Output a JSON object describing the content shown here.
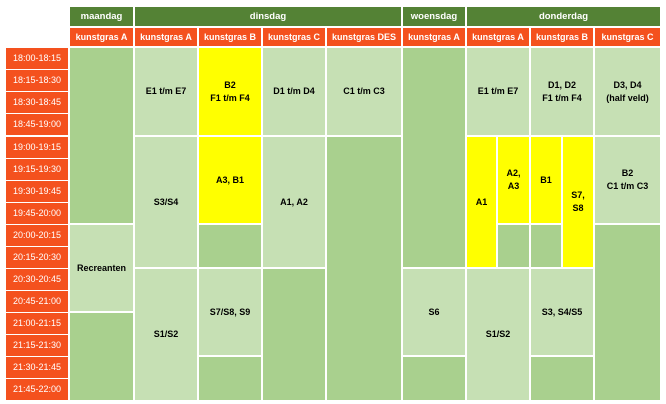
{
  "colors": {
    "day_header": "#548235",
    "field_header": "#f4511e",
    "time_slot": "#f4511e",
    "light_green": "#c6e0b4",
    "dark_green": "#a9d08e",
    "yellow": "#ffff00"
  },
  "days": {
    "maandag": "maandag",
    "dinsdag": "dinsdag",
    "woensdag": "woensdag",
    "donderdag": "donderdag"
  },
  "fields": {
    "ma_a": "kunstgras A",
    "di_a": "kunstgras A",
    "di_b": "kunstgras B",
    "di_c": "kunstgras C",
    "di_des": "kunstgras DES",
    "wo_a": "kunstgras A",
    "do_a": "kunstgras A",
    "do_b": "kunstgras B",
    "do_c": "kunstgras C"
  },
  "times": [
    "18:00-18:15",
    "18:15-18:30",
    "18:30-18:45",
    "18:45-19:00",
    "19:00-19:15",
    "19:15-19:30",
    "19:30-19:45",
    "19:45-20:00",
    "20:00-20:15",
    "20:15-20:30",
    "20:30-20:45",
    "20:45-21:00",
    "21:00-21:15",
    "21:15-21:30",
    "21:30-21:45",
    "21:45-22:00"
  ],
  "blocks": {
    "ma_recreanten": "Recreanten",
    "di_a_1": "E1 t/m E7",
    "di_a_2": "S3/S4",
    "di_a_3": "S1/S2",
    "di_b_1": "B2\nF1 t/m F4",
    "di_b_2": "A3, B1",
    "di_b_3": "S7/S8, S9",
    "di_c_1": "D1 t/m D4",
    "di_c_2": "A1, A2",
    "di_des_1": "C1 t/m C3",
    "wo_s6": "S6",
    "do_a_1": "E1 t/m E7",
    "do_a_a1": "A1",
    "do_a_a2a3": "A2,\nA3",
    "do_a_3": "S1/S2",
    "do_b_1": "D1, D2\nF1 t/m F4",
    "do_b_b1": "B1",
    "do_b_s7s8": "S7,\nS8",
    "do_b_3": "S3, S4/S5",
    "do_c_1": "D3, D4\n(half veld)",
    "do_c_2": "B2\nC1 t/m C3"
  }
}
